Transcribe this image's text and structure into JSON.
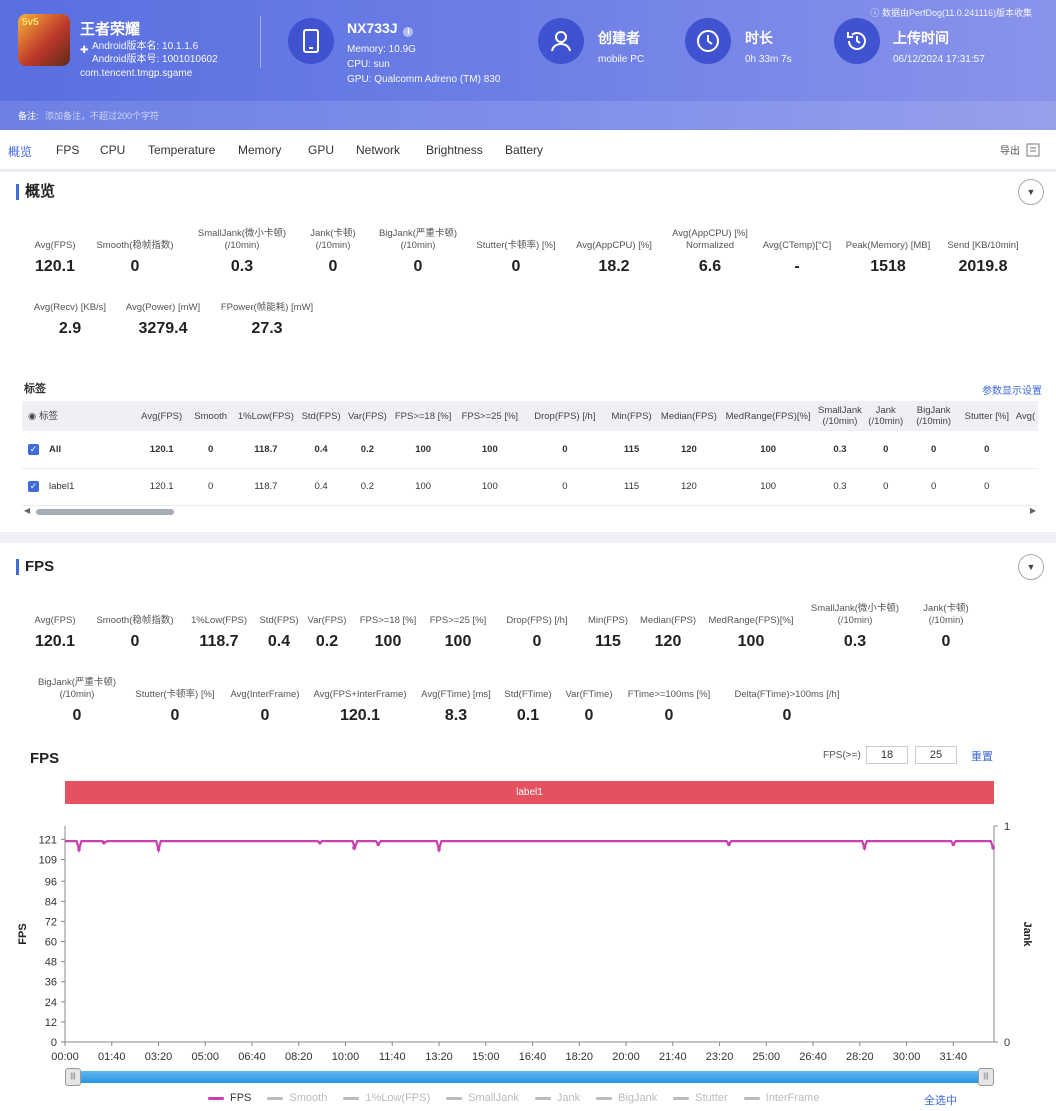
{
  "header": {
    "app_name": "王者荣耀",
    "app_icon_text": "5v5",
    "android_version_name": "Android版本名: 10.1.1.6",
    "android_version_code": "Android版本号: 1001010602",
    "package": "com.tencent.tmgp.sgame",
    "device_name": "NX733J",
    "device_memory": "Memory: 10.9G",
    "device_cpu": "CPU: sun",
    "device_gpu": "GPU: Qualcomm Adreno (TM) 830",
    "creator_label": "创建者",
    "creator_value": "mobile PC",
    "duration_label": "时长",
    "duration_value": "0h 33m 7s",
    "upload_label": "上传时间",
    "upload_value": "06/12/2024 17:31:57",
    "source_note": "数据由PerfDog(11.0.241116)版本收集",
    "note_label": "备注:",
    "note_placeholder": "添加备注，不超过200个字符"
  },
  "tabs": [
    "概览",
    "FPS",
    "CPU",
    "Temperature",
    "Memory",
    "GPU",
    "Network",
    "Brightness",
    "Battery"
  ],
  "export_label": "导出",
  "overview": {
    "title": "概览",
    "metrics_row1": [
      {
        "label": "Avg(FPS)",
        "value": "120.1"
      },
      {
        "label": "Smooth(稳帧指数)",
        "value": "0"
      },
      {
        "label": "SmallJank(微小卡顿)\n(/10min)",
        "value": "0.3"
      },
      {
        "label": "Jank(卡顿)\n(/10min)",
        "value": "0"
      },
      {
        "label": "BigJank(严重卡顿)\n(/10min)",
        "value": "0"
      },
      {
        "label": "Stutter(卡顿率) [%]",
        "value": "0"
      },
      {
        "label": "Avg(AppCPU) [%]",
        "value": "18.2"
      },
      {
        "label": "Avg(AppCPU) [%]\nNormalized",
        "value": "6.6"
      },
      {
        "label": "Avg(CTemp)[°C]",
        "value": "-"
      },
      {
        "label": "Peak(Memory) [MB]",
        "value": "1518"
      },
      {
        "label": "Send [KB/10min]",
        "value": "2019.8"
      }
    ],
    "metrics_row2": [
      {
        "label": "Avg(Recv) [KB/s]",
        "value": "2.9"
      },
      {
        "label": "Avg(Power) [mW]",
        "value": "3279.4"
      },
      {
        "label": "FPower(帧能耗) [mW]",
        "value": "27.3"
      }
    ],
    "tags_title": "标签",
    "display_settings": "参数显示设置",
    "table_headers": [
      "标签",
      "Avg(FPS)",
      "Smooth",
      "1%Low(FPS)",
      "Std(FPS)",
      "Var(FPS)",
      "FPS>=18 [%]",
      "FPS>=25 [%]",
      "Drop(FPS) [/h]",
      "Min(FPS)",
      "Median(FPS)",
      "MedRange(FPS)[%]",
      "SmallJank\n(/10min)",
      "Jank\n(/10min)",
      "BigJank\n(/10min)",
      "Stutter [%]",
      "Avg("
    ],
    "table_rows": [
      {
        "name": "All",
        "cells": [
          "120.1",
          "0",
          "118.7",
          "0.4",
          "0.2",
          "100",
          "100",
          "0",
          "115",
          "120",
          "100",
          "0.3",
          "0",
          "0",
          "0",
          ""
        ]
      },
      {
        "name": "label1",
        "cells": [
          "120.1",
          "0",
          "118.7",
          "0.4",
          "0.2",
          "100",
          "100",
          "0",
          "115",
          "120",
          "100",
          "0.3",
          "0",
          "0",
          "0",
          ""
        ]
      }
    ]
  },
  "fps_section": {
    "title": "FPS",
    "metrics_row1": [
      {
        "label": "Avg(FPS)",
        "value": "120.1"
      },
      {
        "label": "Smooth(稳帧指数)",
        "value": "0"
      },
      {
        "label": "1%Low(FPS)",
        "value": "118.7"
      },
      {
        "label": "Std(FPS)",
        "value": "0.4"
      },
      {
        "label": "Var(FPS)",
        "value": "0.2"
      },
      {
        "label": "FPS>=18 [%]",
        "value": "100"
      },
      {
        "label": "FPS>=25 [%]",
        "value": "100"
      },
      {
        "label": "Drop(FPS) [/h]",
        "value": "0"
      },
      {
        "label": "Min(FPS)",
        "value": "115"
      },
      {
        "label": "Median(FPS)",
        "value": "120"
      },
      {
        "label": "MedRange(FPS)[%]",
        "value": "100"
      },
      {
        "label": "SmallJank(微小卡顿)\n(/10min)",
        "value": "0.3"
      },
      {
        "label": "Jank(卡顿)\n(/10min)",
        "value": "0"
      }
    ],
    "metrics_row2": [
      {
        "label": "BigJank(严重卡顿)\n(/10min)",
        "value": "0"
      },
      {
        "label": "Stutter(卡顿率) [%]",
        "value": "0"
      },
      {
        "label": "Avg(InterFrame)",
        "value": "0"
      },
      {
        "label": "Avg(FPS+InterFrame)",
        "value": "120.1"
      },
      {
        "label": "Avg(FTime) [ms]",
        "value": "8.3"
      },
      {
        "label": "Std(FTime)",
        "value": "0.1"
      },
      {
        "label": "Var(FTime)",
        "value": "0"
      },
      {
        "label": "FTime>=100ms [%]",
        "value": "0"
      },
      {
        "label": "Delta(FTime)>100ms [/h]",
        "value": "0"
      }
    ],
    "chart_title": "FPS",
    "threshold_label": "FPS(>=)",
    "threshold1": "18",
    "threshold2": "25",
    "reset_label": "重置",
    "label_bar": "label1",
    "legend": [
      "FPS",
      "Smooth",
      "1%Low(FPS)",
      "SmallJank",
      "Jank",
      "BigJank",
      "Stutter",
      "InterFrame"
    ],
    "select_all": "全选中"
  },
  "chart_data": {
    "type": "line",
    "title": "FPS",
    "ylabel": "FPS",
    "y2label": "Jank",
    "yticks": [
      0,
      12,
      24,
      36,
      48,
      60,
      72,
      84,
      96,
      109,
      121
    ],
    "ylim": [
      0,
      129
    ],
    "y2ticks": [
      0,
      1
    ],
    "xticks": [
      "00:00",
      "01:40",
      "03:20",
      "05:00",
      "06:40",
      "08:20",
      "10:00",
      "11:40",
      "13:20",
      "15:00",
      "16:40",
      "18:20",
      "20:00",
      "21:40",
      "23:20",
      "25:00",
      "26:40",
      "28:20",
      "30:00",
      "31:40"
    ],
    "xlim_seconds": [
      0,
      1987
    ],
    "series": [
      {
        "name": "FPS",
        "color": "#c83fb0",
        "baseline": 120,
        "dips": [
          [
            30,
            115
          ],
          [
            83,
            119
          ],
          [
            200,
            115
          ],
          [
            545,
            119
          ],
          [
            618,
            116
          ],
          [
            670,
            118
          ],
          [
            800,
            115
          ],
          [
            1420,
            118
          ],
          [
            1710,
            116
          ],
          [
            1900,
            118
          ],
          [
            1985,
            116
          ]
        ]
      }
    ]
  }
}
